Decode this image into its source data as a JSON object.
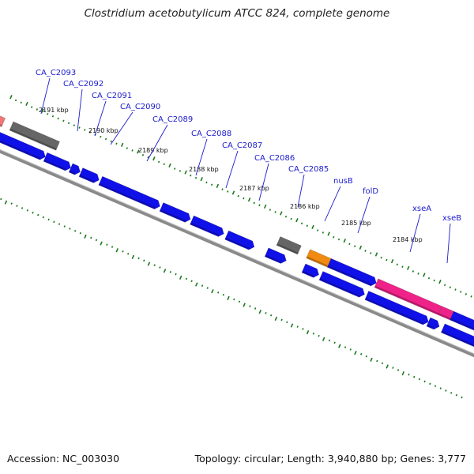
{
  "title": "Clostridium acetobutylicum ATCC 824, complete genome",
  "accession": "Accession: NC_003030",
  "topology": "Topology: circular; Length: 3,940,880 bp; Genes: 3,777",
  "colors": {
    "cds": "#1010e8",
    "pseudo": "#666666",
    "trna": "#f08a10",
    "pink": "#ee2288",
    "salmon": "#ee7777",
    "label": "#1a1acc",
    "tick": "#1a7a1a",
    "backbone": "#888888"
  },
  "kbp_ticks": [
    "2191 kbp",
    "2190 kbp",
    "2189 kbp",
    "2188 kbp",
    "2187 kbp",
    "2186 kbp",
    "2185 kbp",
    "2184 kbp"
  ],
  "gene_labels": [
    "CA_C2093",
    "CA_C2092",
    "CA_C2091",
    "CA_C2090",
    "CA_C2089",
    "CA_C2088",
    "CA_C2087",
    "CA_C2086",
    "CA_C2085",
    "nusB",
    "folD",
    "xseA",
    "xseB"
  ]
}
